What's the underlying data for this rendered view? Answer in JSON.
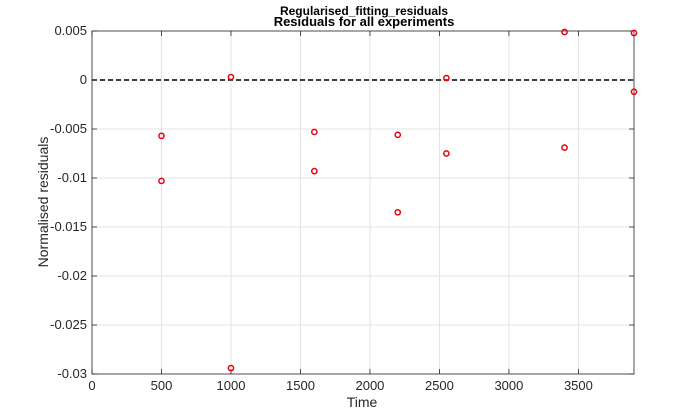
{
  "window_title": "Regularised_fitting_residuals",
  "chart_data": {
    "type": "scatter",
    "title": "Residuals for all experiments",
    "xlabel": "Time",
    "ylabel": "Normalised residuals",
    "xlim": [
      0,
      3900
    ],
    "ylim": [
      -0.03,
      0.005
    ],
    "xticks": [
      0,
      500,
      1000,
      1500,
      2000,
      2500,
      3000,
      3500
    ],
    "xtick_labels": [
      "0",
      "500",
      "1000",
      "1500",
      "2000",
      "2500",
      "3000",
      "3500"
    ],
    "yticks": [
      -0.03,
      -0.025,
      -0.02,
      -0.015,
      -0.01,
      -0.005,
      0,
      0.005
    ],
    "ytick_labels": [
      "-0.03",
      "-0.025",
      "-0.02",
      "-0.015",
      "-0.01",
      "-0.005",
      "0",
      "0.005"
    ],
    "grid": true,
    "reference_line": {
      "y": 0,
      "style": "dashed",
      "color": "#000000"
    },
    "marker_color": "#e8000b",
    "points": [
      {
        "x": 500,
        "y": -0.0057
      },
      {
        "x": 500,
        "y": -0.0103
      },
      {
        "x": 1000,
        "y": 0.0003
      },
      {
        "x": 1000,
        "y": -0.0294
      },
      {
        "x": 1600,
        "y": -0.0053
      },
      {
        "x": 1600,
        "y": -0.0093
      },
      {
        "x": 2200,
        "y": -0.0056
      },
      {
        "x": 2200,
        "y": -0.0135
      },
      {
        "x": 2550,
        "y": 0.0002
      },
      {
        "x": 2550,
        "y": -0.0075
      },
      {
        "x": 3400,
        "y": 0.0049
      },
      {
        "x": 3400,
        "y": -0.0069
      },
      {
        "x": 3900,
        "y": 0.0048
      },
      {
        "x": 3900,
        "y": -0.0012
      }
    ]
  }
}
